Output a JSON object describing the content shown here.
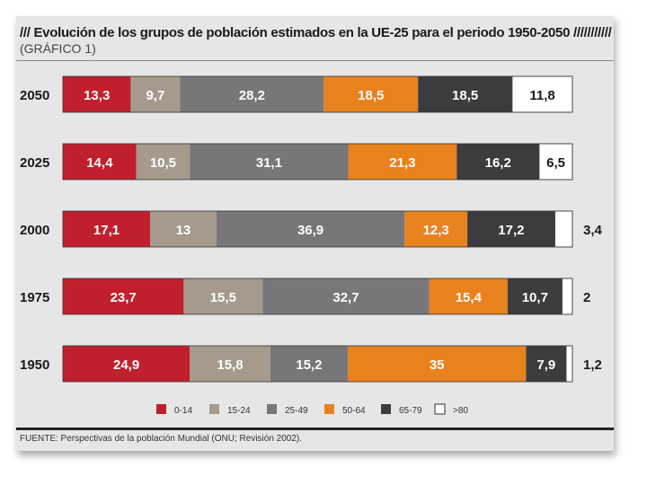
{
  "header": {
    "title": "/// Evolución de los grupos de población estimados en la UE-25 para el periodo 1950-2050 ///////////",
    "subtitle": "(GRÁFICO 1)"
  },
  "footer": {
    "source": "FUENTE: Perspectivas de la población Mundial (ONU; Revisión 2002)."
  },
  "chart_data": {
    "type": "bar",
    "orientation": "horizontal",
    "stacked": true,
    "title": "/// Evolución de los grupos de población estimados en la UE-25 para el periodo 1950-2050 ///////////",
    "subtitle": "(GRÁFICO 1)",
    "unit": "%",
    "categories": [
      "2050",
      "2025",
      "2000",
      "1975",
      "1950"
    ],
    "series": [
      {
        "name": "0-14",
        "color": "#c0202d",
        "label_color": "#ffffff",
        "values": [
          13.3,
          14.4,
          17.1,
          23.7,
          24.9
        ],
        "labels": [
          "13,3",
          "14,4",
          "17,1",
          "23,7",
          "24,9"
        ]
      },
      {
        "name": "15-24",
        "color": "#a59a8c",
        "label_color": "#ffffff",
        "values": [
          9.7,
          10.5,
          13,
          15.5,
          15.8
        ],
        "labels": [
          "9,7",
          "10,5",
          "13",
          "15,5",
          "15,8"
        ]
      },
      {
        "name": "25-49",
        "color": "#77777a",
        "label_color": "#ffffff",
        "values": [
          28.2,
          31.1,
          36.9,
          32.7,
          15.2
        ],
        "labels": [
          "28,2",
          "31,1",
          "36,9",
          "32,7",
          "15,2"
        ]
      },
      {
        "name": "50-64",
        "color": "#e8821e",
        "label_color": "#ffffff",
        "values": [
          18.5,
          21.3,
          12.3,
          15.4,
          35
        ],
        "labels": [
          "18,5",
          "21,3",
          "12,3",
          "15,4",
          "35"
        ]
      },
      {
        "name": "65-79",
        "color": "#3c3c3e",
        "label_color": "#ffffff",
        "values": [
          18.5,
          16.2,
          17.2,
          10.7,
          7.9
        ],
        "labels": [
          "18,5",
          "16,2",
          "17,2",
          "10,7",
          "7,9"
        ]
      },
      {
        "name": ">80",
        "color": "#ffffff",
        "label_color": "#1a1a1a",
        "values": [
          11.8,
          6.5,
          3.4,
          2,
          1.2
        ],
        "labels": [
          "11,8",
          "6,5",
          "3,4",
          "2",
          "1,2"
        ]
      }
    ],
    "legend": {
      "position": "bottom",
      "entries": [
        "0-14",
        "15-24",
        "25-49",
        "50-64",
        "65-79",
        ">80"
      ]
    }
  }
}
